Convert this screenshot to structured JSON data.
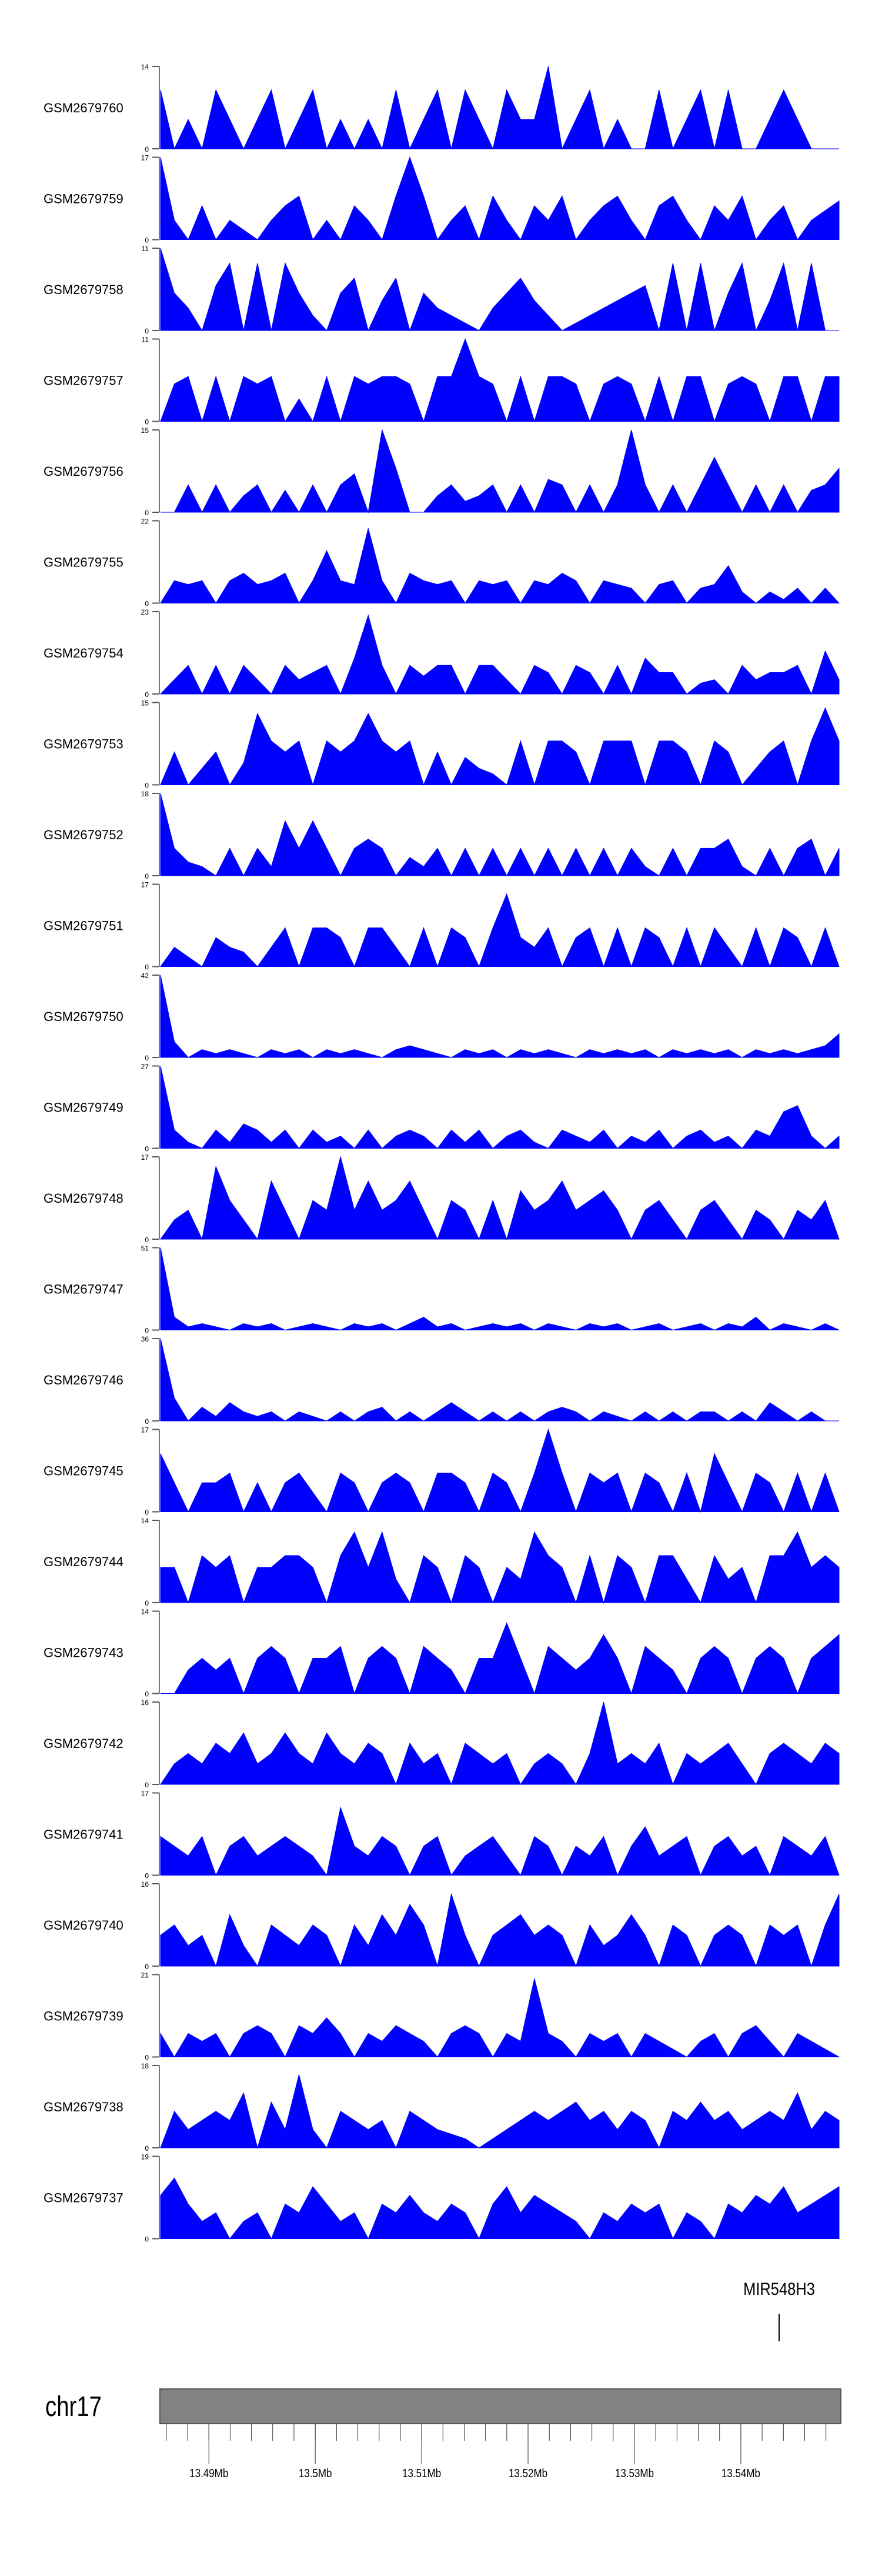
{
  "chart_data": {
    "type": "area",
    "title": "",
    "fill_color": "#0000ff",
    "x_range_mb": [
      13.4854,
      13.5494
    ],
    "note": "values are coverage sampled evenly across x_range_mb",
    "tracks": [
      {
        "name": "GSM2679760",
        "ymax": 14,
        "values": [
          10,
          0,
          5,
          0,
          10,
          5,
          0,
          5,
          10,
          0,
          5,
          10,
          0,
          5,
          0,
          5,
          0,
          10,
          0,
          5,
          10,
          0,
          10,
          5,
          0,
          10,
          5,
          5,
          14,
          0,
          5,
          10,
          0,
          5,
          0,
          0,
          10,
          0,
          5,
          10,
          0,
          10,
          0,
          0,
          5,
          10,
          5,
          0,
          0,
          0
        ]
      },
      {
        "name": "GSM2679759",
        "ymax": 17,
        "values": [
          17,
          4,
          0,
          7,
          0,
          4,
          2,
          0,
          4,
          7,
          9,
          0,
          4,
          0,
          7,
          4,
          0,
          9,
          17,
          9,
          0,
          4,
          7,
          0,
          9,
          4,
          0,
          7,
          4,
          9,
          0,
          4,
          7,
          9,
          4,
          0,
          7,
          9,
          4,
          0,
          7,
          4,
          9,
          0,
          4,
          7,
          0,
          4,
          6,
          8
        ]
      },
      {
        "name": "GSM2679758",
        "ymax": 11,
        "values": [
          11,
          5,
          3,
          0,
          6,
          9,
          0,
          9,
          0,
          9,
          5,
          2,
          0,
          5,
          7,
          0,
          4,
          7,
          0,
          5,
          3,
          2,
          1,
          0,
          3,
          5,
          7,
          4,
          2,
          0,
          1,
          2,
          3,
          4,
          5,
          6,
          0,
          9,
          0,
          9,
          0,
          5,
          9,
          0,
          4,
          9,
          0,
          9,
          0,
          0
        ]
      },
      {
        "name": "GSM2679757",
        "ymax": 11,
        "values": [
          0,
          5,
          6,
          0,
          6,
          0,
          6,
          5,
          6,
          0,
          3,
          0,
          6,
          0,
          6,
          5,
          6,
          6,
          5,
          0,
          6,
          6,
          11,
          6,
          5,
          0,
          6,
          0,
          6,
          6,
          5,
          0,
          5,
          6,
          5,
          0,
          6,
          0,
          6,
          6,
          0,
          5,
          6,
          5,
          0,
          6,
          6,
          0,
          6,
          6
        ]
      },
      {
        "name": "GSM2679756",
        "ymax": 15,
        "values": [
          0,
          0,
          5,
          0,
          5,
          0,
          3,
          5,
          0,
          4,
          0,
          5,
          0,
          5,
          7,
          0,
          15,
          8,
          0,
          0,
          3,
          5,
          2,
          3,
          5,
          0,
          5,
          0,
          6,
          5,
          0,
          5,
          0,
          5,
          15,
          5,
          0,
          5,
          0,
          5,
          10,
          5,
          0,
          5,
          0,
          5,
          0,
          4,
          5,
          8
        ]
      },
      {
        "name": "GSM2679755",
        "ymax": 22,
        "values": [
          0,
          6,
          5,
          6,
          0,
          6,
          8,
          5,
          6,
          8,
          0,
          6,
          14,
          6,
          5,
          20,
          6,
          0,
          8,
          6,
          5,
          6,
          0,
          6,
          5,
          6,
          0,
          6,
          5,
          8,
          6,
          0,
          6,
          5,
          4,
          0,
          5,
          6,
          0,
          4,
          5,
          10,
          3,
          0,
          3,
          1,
          4,
          0,
          4,
          0
        ]
      },
      {
        "name": "GSM2679754",
        "ymax": 23,
        "values": [
          0,
          4,
          8,
          0,
          8,
          0,
          8,
          4,
          0,
          8,
          4,
          6,
          8,
          0,
          10,
          22,
          8,
          0,
          8,
          5,
          8,
          8,
          0,
          8,
          8,
          4,
          0,
          8,
          6,
          0,
          8,
          6,
          0,
          8,
          0,
          10,
          6,
          6,
          0,
          3,
          4,
          0,
          8,
          4,
          6,
          6,
          8,
          0,
          12,
          4
        ]
      },
      {
        "name": "GSM2679753",
        "ymax": 15,
        "values": [
          0,
          6,
          0,
          3,
          6,
          0,
          4,
          13,
          8,
          6,
          8,
          0,
          8,
          6,
          8,
          13,
          8,
          6,
          8,
          0,
          6,
          0,
          5,
          3,
          2,
          0,
          8,
          0,
          8,
          8,
          6,
          0,
          8,
          8,
          8,
          0,
          8,
          8,
          6,
          0,
          8,
          6,
          0,
          3,
          6,
          8,
          0,
          8,
          14,
          8
        ]
      },
      {
        "name": "GSM2679752",
        "ymax": 18,
        "values": [
          18,
          6,
          3,
          2,
          0,
          6,
          0,
          6,
          2,
          12,
          6,
          12,
          6,
          0,
          6,
          8,
          6,
          0,
          4,
          2,
          6,
          0,
          6,
          0,
          6,
          0,
          6,
          0,
          6,
          0,
          6,
          0,
          6,
          0,
          6,
          2,
          0,
          6,
          0,
          6,
          6,
          8,
          2,
          0,
          6,
          0,
          6,
          8,
          0,
          6
        ]
      },
      {
        "name": "GSM2679751",
        "ymax": 17,
        "values": [
          0,
          4,
          2,
          0,
          6,
          4,
          3,
          0,
          4,
          8,
          0,
          8,
          8,
          6,
          0,
          8,
          8,
          4,
          0,
          8,
          0,
          8,
          6,
          0,
          8,
          15,
          6,
          4,
          8,
          0,
          6,
          8,
          0,
          8,
          0,
          8,
          6,
          0,
          8,
          0,
          8,
          4,
          0,
          8,
          0,
          8,
          6,
          0,
          8,
          0
        ]
      },
      {
        "name": "GSM2679750",
        "ymax": 42,
        "values": [
          42,
          8,
          0,
          4,
          2,
          4,
          2,
          0,
          4,
          2,
          4,
          0,
          4,
          2,
          4,
          2,
          0,
          4,
          6,
          4,
          2,
          0,
          4,
          2,
          4,
          0,
          4,
          2,
          4,
          2,
          0,
          4,
          2,
          4,
          2,
          4,
          0,
          4,
          2,
          4,
          2,
          4,
          0,
          4,
          2,
          4,
          2,
          4,
          6,
          12
        ]
      },
      {
        "name": "GSM2679749",
        "ymax": 27,
        "values": [
          27,
          6,
          2,
          0,
          6,
          2,
          8,
          6,
          2,
          6,
          0,
          6,
          2,
          4,
          0,
          6,
          0,
          4,
          6,
          4,
          0,
          6,
          2,
          6,
          0,
          4,
          6,
          2,
          0,
          6,
          4,
          2,
          6,
          0,
          4,
          2,
          6,
          0,
          4,
          6,
          2,
          4,
          0,
          6,
          4,
          12,
          14,
          4,
          0,
          4
        ]
      },
      {
        "name": "GSM2679748",
        "ymax": 17,
        "values": [
          0,
          4,
          6,
          0,
          15,
          8,
          4,
          0,
          12,
          6,
          0,
          8,
          6,
          17,
          6,
          12,
          6,
          8,
          12,
          6,
          0,
          8,
          6,
          0,
          8,
          0,
          10,
          6,
          8,
          12,
          6,
          8,
          10,
          6,
          0,
          6,
          8,
          4,
          0,
          6,
          8,
          4,
          0,
          6,
          4,
          0,
          6,
          4,
          8,
          0
        ]
      },
      {
        "name": "GSM2679747",
        "ymax": 51,
        "values": [
          51,
          8,
          2,
          4,
          2,
          0,
          4,
          2,
          4,
          0,
          2,
          4,
          2,
          0,
          4,
          2,
          4,
          0,
          4,
          8,
          2,
          4,
          0,
          2,
          4,
          2,
          4,
          0,
          4,
          2,
          0,
          4,
          2,
          4,
          0,
          2,
          4,
          0,
          2,
          4,
          0,
          4,
          2,
          8,
          0,
          4,
          2,
          0,
          4,
          0
        ]
      },
      {
        "name": "GSM2679746",
        "ymax": 36,
        "values": [
          36,
          10,
          0,
          6,
          2,
          8,
          4,
          2,
          4,
          0,
          4,
          2,
          0,
          4,
          0,
          4,
          6,
          0,
          4,
          0,
          4,
          8,
          4,
          0,
          4,
          0,
          4,
          0,
          4,
          6,
          4,
          0,
          4,
          2,
          0,
          4,
          0,
          4,
          0,
          4,
          4,
          0,
          4,
          0,
          8,
          4,
          0,
          4,
          0,
          0
        ]
      },
      {
        "name": "GSM2679745",
        "ymax": 17,
        "values": [
          12,
          6,
          0,
          6,
          6,
          8,
          0,
          6,
          0,
          6,
          8,
          4,
          0,
          8,
          6,
          0,
          6,
          8,
          6,
          0,
          8,
          8,
          6,
          0,
          8,
          6,
          0,
          8,
          17,
          8,
          0,
          8,
          6,
          8,
          0,
          8,
          6,
          0,
          8,
          0,
          12,
          6,
          0,
          8,
          6,
          0,
          8,
          0,
          8,
          0
        ]
      },
      {
        "name": "GSM2679744",
        "ymax": 14,
        "values": [
          6,
          6,
          0,
          8,
          6,
          8,
          0,
          6,
          6,
          8,
          8,
          6,
          0,
          8,
          12,
          6,
          12,
          4,
          0,
          8,
          6,
          0,
          8,
          6,
          0,
          6,
          4,
          12,
          8,
          6,
          0,
          8,
          0,
          8,
          6,
          0,
          8,
          8,
          4,
          0,
          8,
          4,
          6,
          0,
          8,
          8,
          12,
          6,
          8,
          6
        ]
      },
      {
        "name": "GSM2679743",
        "ymax": 14,
        "values": [
          0,
          0,
          4,
          6,
          4,
          6,
          0,
          6,
          8,
          6,
          0,
          6,
          6,
          8,
          0,
          6,
          8,
          6,
          0,
          8,
          6,
          4,
          0,
          6,
          6,
          12,
          6,
          0,
          8,
          6,
          4,
          6,
          10,
          6,
          0,
          8,
          6,
          4,
          0,
          6,
          8,
          6,
          0,
          6,
          8,
          6,
          0,
          6,
          8,
          10
        ]
      },
      {
        "name": "GSM2679742",
        "ymax": 16,
        "values": [
          0,
          4,
          6,
          4,
          8,
          6,
          10,
          4,
          6,
          10,
          6,
          4,
          10,
          6,
          4,
          8,
          6,
          0,
          8,
          4,
          6,
          0,
          8,
          6,
          4,
          6,
          0,
          4,
          6,
          4,
          0,
          6,
          16,
          4,
          6,
          4,
          8,
          0,
          6,
          4,
          6,
          8,
          4,
          0,
          6,
          8,
          6,
          4,
          8,
          6
        ]
      },
      {
        "name": "GSM2679741",
        "ymax": 17,
        "values": [
          8,
          6,
          4,
          8,
          0,
          6,
          8,
          4,
          6,
          8,
          6,
          4,
          0,
          14,
          6,
          4,
          8,
          6,
          0,
          6,
          8,
          0,
          4,
          6,
          8,
          4,
          0,
          8,
          6,
          0,
          6,
          4,
          8,
          0,
          6,
          10,
          4,
          6,
          8,
          0,
          6,
          8,
          4,
          6,
          0,
          8,
          6,
          4,
          8,
          0
        ]
      },
      {
        "name": "GSM2679740",
        "ymax": 16,
        "values": [
          6,
          8,
          4,
          6,
          0,
          10,
          4,
          0,
          8,
          6,
          4,
          8,
          6,
          0,
          8,
          4,
          10,
          6,
          12,
          8,
          0,
          14,
          6,
          0,
          6,
          8,
          10,
          6,
          8,
          6,
          0,
          8,
          4,
          6,
          10,
          6,
          0,
          8,
          6,
          0,
          6,
          8,
          6,
          0,
          8,
          6,
          8,
          0,
          8,
          14
        ]
      },
      {
        "name": "GSM2679739",
        "ymax": 21,
        "values": [
          6,
          0,
          6,
          4,
          6,
          0,
          6,
          8,
          6,
          0,
          8,
          6,
          10,
          6,
          0,
          6,
          4,
          8,
          6,
          4,
          0,
          6,
          8,
          6,
          0,
          6,
          4,
          20,
          6,
          4,
          0,
          6,
          4,
          6,
          0,
          6,
          4,
          2,
          0,
          4,
          6,
          0,
          6,
          8,
          4,
          0,
          6,
          4,
          2,
          0
        ]
      },
      {
        "name": "GSM2679738",
        "ymax": 18,
        "values": [
          0,
          8,
          4,
          6,
          8,
          6,
          12,
          0,
          10,
          4,
          16,
          4,
          0,
          8,
          6,
          4,
          6,
          0,
          8,
          6,
          4,
          3,
          2,
          0,
          2,
          4,
          6,
          8,
          6,
          8,
          10,
          6,
          8,
          4,
          8,
          6,
          0,
          8,
          6,
          10,
          6,
          8,
          4,
          6,
          8,
          6,
          12,
          4,
          8,
          6
        ]
      },
      {
        "name": "GSM2679737",
        "ymax": 19,
        "values": [
          10,
          14,
          8,
          4,
          6,
          0,
          4,
          6,
          0,
          8,
          6,
          12,
          8,
          4,
          6,
          0,
          8,
          6,
          10,
          6,
          4,
          8,
          6,
          0,
          8,
          12,
          6,
          10,
          8,
          6,
          4,
          0,
          6,
          4,
          8,
          6,
          8,
          0,
          6,
          4,
          0,
          8,
          6,
          10,
          8,
          12,
          6,
          8,
          10,
          12
        ]
      }
    ],
    "genes": [
      {
        "name": "MIR548H3",
        "position_mb": 13.5436
      }
    ],
    "chromosome": "chr17",
    "axis_ticks": [
      "13.49Mb",
      "13.5Mb",
      "13.51Mb",
      "13.52Mb",
      "13.53Mb",
      "13.54Mb"
    ],
    "axis_tick_values": [
      13.49,
      13.5,
      13.51,
      13.52,
      13.53,
      13.54
    ]
  }
}
